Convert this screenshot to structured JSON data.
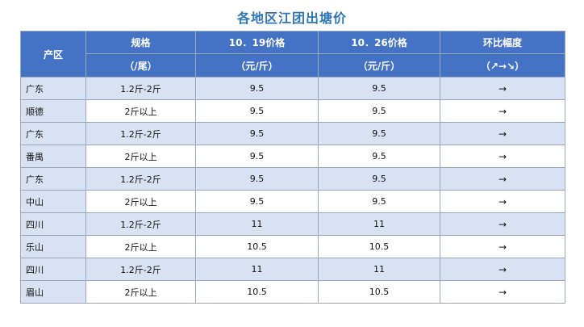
{
  "title": "各地区江团出塘价",
  "header": {
    "region": "产区",
    "spec": "规格",
    "spec_unit": "（/尾）",
    "price1": "10．19价格",
    "price1_unit": "（元/斤）",
    "price2": "10．26价格",
    "price2_unit": "（元/斤）",
    "change": "环比幅度",
    "change_unit": "（↗→↘）"
  },
  "rows": [
    {
      "region": "广东",
      "spec": "1.2斤-2斤",
      "price1": "9.5",
      "price2": "9.5",
      "change": "→"
    },
    {
      "region": "顺德",
      "spec": "2斤以上",
      "price1": "9.5",
      "price2": "9.5",
      "change": "→"
    },
    {
      "region": "广东",
      "spec": "1.2斤-2斤",
      "price1": "9.5",
      "price2": "9.5",
      "change": "→"
    },
    {
      "region": "番禺",
      "spec": "2斤以上",
      "price1": "9.5",
      "price2": "9.5",
      "change": "→"
    },
    {
      "region": "广东",
      "spec": "1.2斤-2斤",
      "price1": "9.5",
      "price2": "9.5",
      "change": "→"
    },
    {
      "region": "中山",
      "spec": "2斤以上",
      "price1": "9.5",
      "price2": "9.5",
      "change": "→"
    },
    {
      "region": "四川",
      "spec": "1.2斤-2斤",
      "price1": "11",
      "price2": "11",
      "change": "→"
    },
    {
      "region": "乐山",
      "spec": "2斤以上",
      "price1": "10.5",
      "price2": "10.5",
      "change": "→"
    },
    {
      "region": "四川",
      "spec": "1.2斤-2斤",
      "price1": "11",
      "price2": "11",
      "change": "→"
    },
    {
      "region": "眉山",
      "spec": "2斤以上",
      "price1": "10.5",
      "price2": "10.5",
      "change": "→"
    }
  ],
  "colors": {
    "title": "#2e75b6",
    "header_bg": "#4472c4",
    "row_shade": "#d9e2f3"
  }
}
